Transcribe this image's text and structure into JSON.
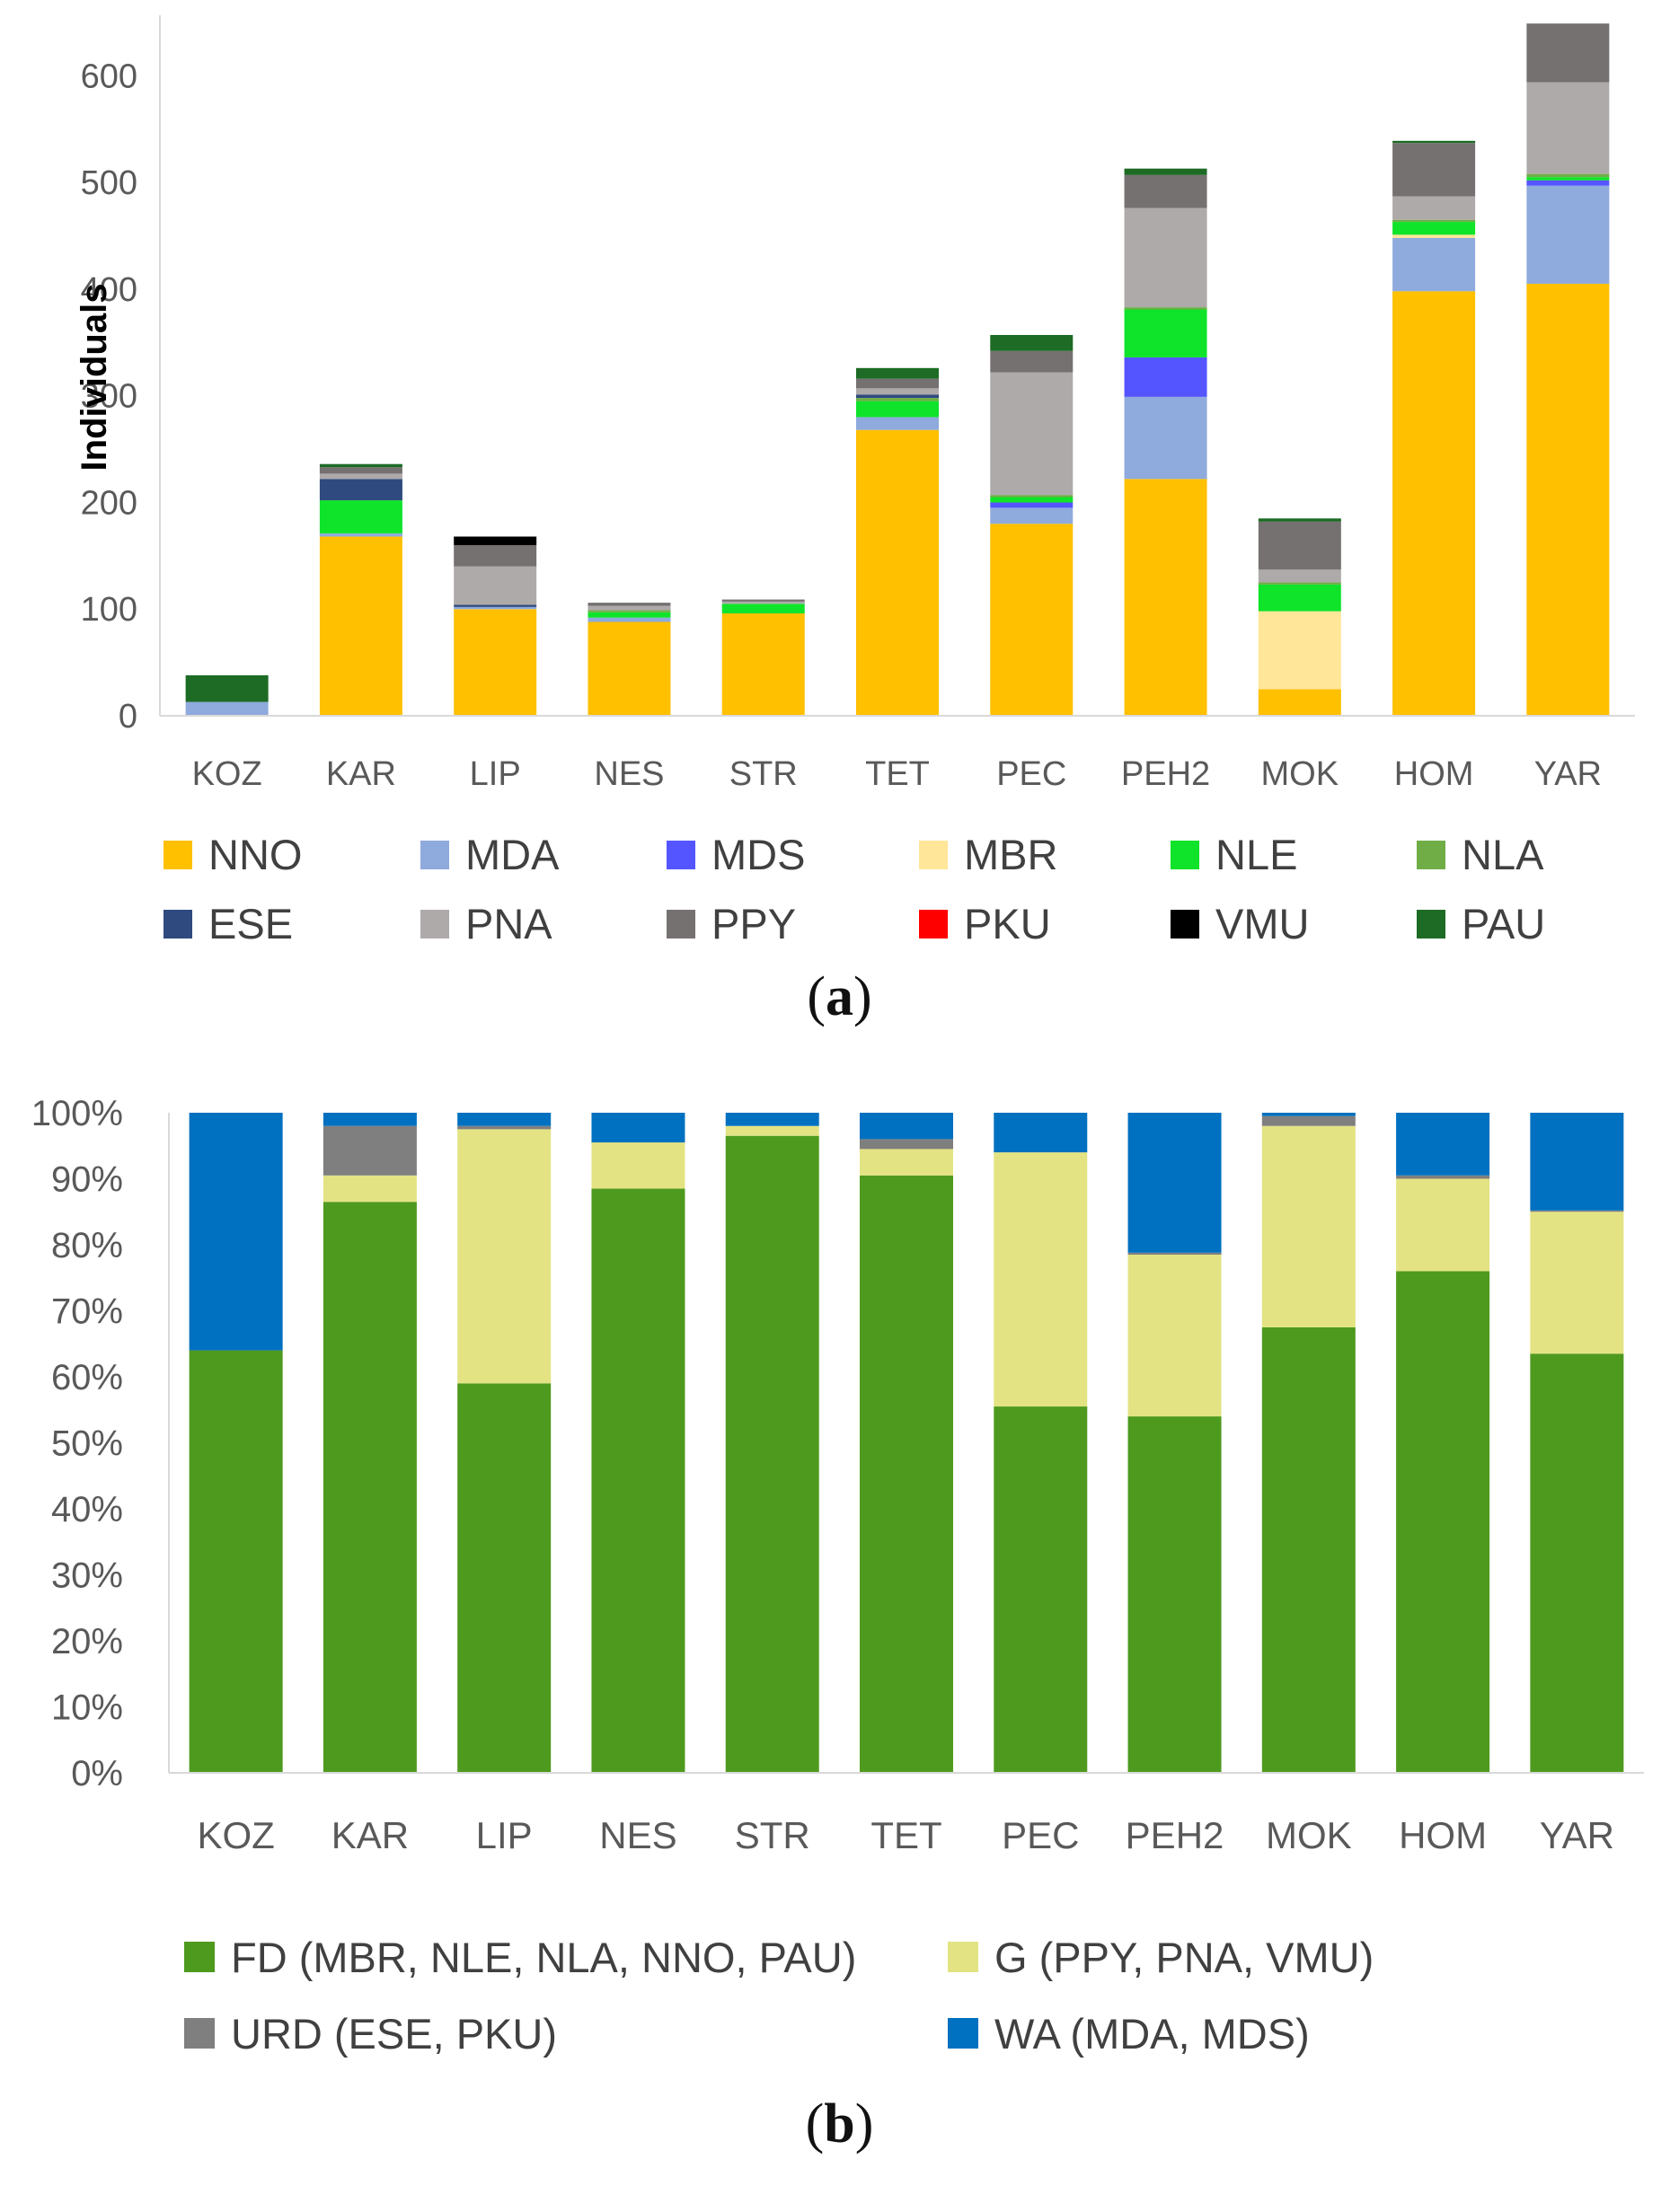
{
  "chart_data": [
    {
      "id": "a",
      "type": "bar",
      "stacked": true,
      "title": "",
      "xlabel": "",
      "ylabel": "Individuals",
      "ylim": [
        0,
        650
      ],
      "yticks": [
        0,
        100,
        200,
        300,
        400,
        500,
        600
      ],
      "categories": [
        "KOZ",
        "KAR",
        "LIP",
        "NES",
        "STR",
        "TET",
        "PEC",
        "PEH2",
        "MOK",
        "HOM",
        "YAR"
      ],
      "legend_position": "bottom",
      "series": [
        {
          "name": "NNO",
          "color": "#FFC000",
          "values": [
            0,
            168,
            100,
            88,
            96,
            268,
            180,
            222,
            25,
            398,
            405
          ]
        },
        {
          "name": "MDA",
          "color": "#8FAADC",
          "values": [
            13,
            3,
            2,
            4,
            0,
            12,
            15,
            77,
            0,
            50,
            92
          ]
        },
        {
          "name": "MDS",
          "color": "#5555FF",
          "values": [
            0,
            0,
            0,
            0,
            0,
            0,
            5,
            37,
            0,
            0,
            5
          ]
        },
        {
          "name": "MBR",
          "color": "#FFE699",
          "values": [
            0,
            0,
            0,
            0,
            0,
            0,
            0,
            0,
            73,
            3,
            0
          ]
        },
        {
          "name": "NLE",
          "color": "#0FE32A",
          "values": [
            0,
            31,
            0,
            5,
            9,
            15,
            5,
            45,
            25,
            12,
            3
          ]
        },
        {
          "name": "NLA",
          "color": "#70AD47",
          "values": [
            0,
            0,
            0,
            2,
            0,
            3,
            2,
            2,
            2,
            2,
            3
          ]
        },
        {
          "name": "ESE",
          "color": "#2E4A7F",
          "values": [
            0,
            20,
            2,
            0,
            0,
            3,
            0,
            0,
            0,
            0,
            0
          ]
        },
        {
          "name": "PNA",
          "color": "#AEAAAA",
          "values": [
            0,
            5,
            36,
            4,
            2,
            6,
            115,
            93,
            12,
            22,
            86
          ]
        },
        {
          "name": "PPY",
          "color": "#767171",
          "values": [
            0,
            6,
            20,
            3,
            2,
            9,
            20,
            31,
            45,
            50,
            55
          ]
        },
        {
          "name": "PKU",
          "color": "#FF0000",
          "values": [
            0,
            0,
            0,
            0,
            0,
            0,
            0,
            0,
            0,
            0,
            0
          ]
        },
        {
          "name": "VMU",
          "color": "#000000",
          "values": [
            0,
            0,
            8,
            0,
            0,
            0,
            0,
            0,
            0,
            0,
            0
          ]
        },
        {
          "name": "PAU",
          "color": "#1D6B25",
          "values": [
            25,
            3,
            0,
            0,
            0,
            10,
            15,
            6,
            3,
            2,
            0
          ]
        }
      ]
    },
    {
      "id": "b",
      "type": "bar",
      "stacked": true,
      "percent": true,
      "title": "",
      "xlabel": "",
      "ylabel": "",
      "ylim": [
        0,
        100
      ],
      "yticks": [
        "0%",
        "10%",
        "20%",
        "30%",
        "40%",
        "50%",
        "60%",
        "70%",
        "80%",
        "90%",
        "100%"
      ],
      "categories": [
        "KOZ",
        "KAR",
        "LIP",
        "NES",
        "STR",
        "TET",
        "PEC",
        "PEH2",
        "MOK",
        "HOM",
        "YAR"
      ],
      "legend_position": "bottom",
      "series": [
        {
          "name": "FD  (MBR, NLE, NLA, NNO, PAU)",
          "color": "#4E9A1E",
          "values": [
            64,
            86.5,
            59,
            88.5,
            96.5,
            90.5,
            55.5,
            54,
            67.5,
            76,
            63.5
          ]
        },
        {
          "name": "G (PPY, PNA, VMU)",
          "color": "#E3E383",
          "values": [
            0,
            4,
            38.5,
            7,
            1.5,
            4,
            38.5,
            24.5,
            30.5,
            14,
            21.5
          ]
        },
        {
          "name": "URD (ESE, PKU)",
          "color": "#7F7F7F",
          "values": [
            0,
            7.5,
            0.5,
            0,
            0,
            1.5,
            0,
            0.3,
            1.5,
            0.5,
            0.2
          ]
        },
        {
          "name": "WA  (MDA, MDS)",
          "color": "#0070C0",
          "values": [
            36,
            2,
            2,
            4.5,
            2,
            4,
            6,
            21.2,
            0.5,
            9.5,
            14.8
          ]
        }
      ]
    }
  ],
  "captions": {
    "a": "a",
    "b": "b"
  }
}
